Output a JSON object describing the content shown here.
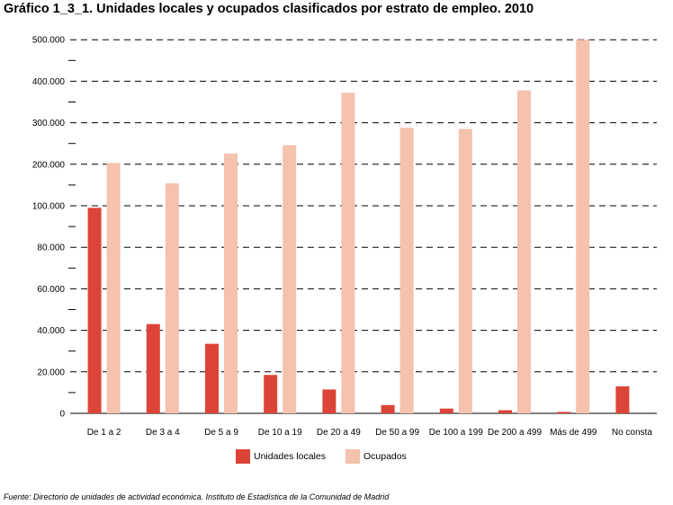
{
  "chart_data": {
    "type": "bar",
    "title": "Gráfico 1_3_1. Unidades locales y ocupados clasificados por estrato de empleo. 2010",
    "categories": [
      "De 1 a 2",
      "De 3 a 4",
      "De 5 a 9",
      "De 10 a 19",
      "De 20 a 49",
      "De 50 a 99",
      "De 100 a 199",
      "De 200 a 499",
      "Más de 499",
      "No consta"
    ],
    "y_tick_labels": [
      "0",
      "20.000",
      "40.000",
      "60.000",
      "80.000",
      "100.000",
      "200.000",
      "300.000",
      "400.000",
      "500.000"
    ],
    "y_scale": "broken: linear 0–100.000 in steps of 20.000, then 100.000–500.000 in steps of 100.000",
    "series": [
      {
        "name": "Unidades locales",
        "color": "#dc4437",
        "values": [
          99000,
          43000,
          33500,
          18500,
          11500,
          4000,
          2300,
          1500,
          700,
          13000
        ]
      },
      {
        "name": "Ocupados",
        "color": "#f4c2ad",
        "values": [
          203000,
          154000,
          226000,
          246000,
          372000,
          288000,
          285000,
          378000,
          500000,
          null
        ]
      }
    ],
    "grid": true,
    "legend_position": "bottom"
  },
  "source_note": "Fuente: Directorio de unidades de actividad económica. Instituto de Estadística de la Comunidad de Madrid"
}
